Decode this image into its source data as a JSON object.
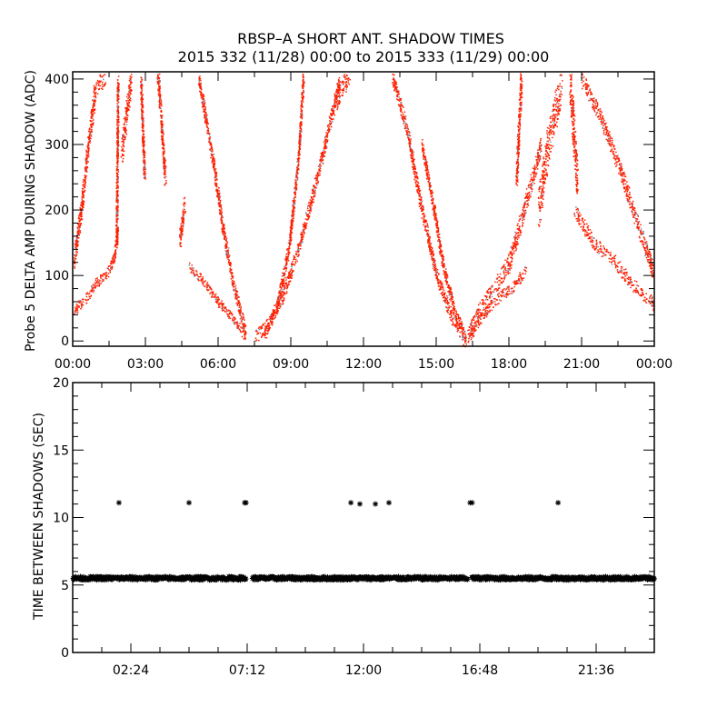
{
  "title": "RBSP–A SHORT ANT. SHADOW TIMES",
  "subtitle": "2015 332 (11/28) 00:00 to 2015 333 (11/29) 00:00",
  "colors": {
    "points": "#ff2000",
    "axis": "#000000",
    "stars": "#000000"
  },
  "chart_data": [
    {
      "type": "scatter",
      "ylabel": "Probe 5 DELTA AMP DURING SHADOW (ADC)",
      "xlabel": "",
      "xlim": [
        0,
        24
      ],
      "ylim": [
        -8,
        411
      ],
      "xticks": [
        {
          "v": 0,
          "label": "00:00"
        },
        {
          "v": 3,
          "label": "03:00"
        },
        {
          "v": 6,
          "label": "06:00"
        },
        {
          "v": 9,
          "label": "09:00"
        },
        {
          "v": 12,
          "label": "12:00"
        },
        {
          "v": 15,
          "label": "15:00"
        },
        {
          "v": 18,
          "label": "18:00"
        },
        {
          "v": 21,
          "label": "21:00"
        },
        {
          "v": 24,
          "label": "00:00"
        }
      ],
      "yticks": [
        {
          "v": 0,
          "label": "0"
        },
        {
          "v": 100,
          "label": "100"
        },
        {
          "v": 200,
          "label": "200"
        },
        {
          "v": 300,
          "label": "300"
        },
        {
          "v": 400,
          "label": "400"
        }
      ],
      "branches": [
        {
          "name": "lower-left rising",
          "points": [
            [
              0,
              45
            ],
            [
              0.5,
              65
            ],
            [
              1.0,
              90
            ],
            [
              1.5,
              108
            ],
            [
              1.7,
              130
            ],
            [
              1.85,
              170
            ]
          ],
          "spread": 8
        },
        {
          "name": "upper-left rising",
          "points": [
            [
              0,
              115
            ],
            [
              0.3,
              190
            ],
            [
              0.6,
              290
            ],
            [
              0.9,
              380
            ],
            [
              1.3,
              405
            ]
          ],
          "spread": 14
        },
        {
          "name": "early scatter 1",
          "points": [
            [
              1.8,
              150
            ],
            [
              1.85,
              400
            ]
          ],
          "spread": 6
        },
        {
          "name": "early scatter 2",
          "points": [
            [
              2.0,
              290
            ],
            [
              2.4,
              400
            ]
          ],
          "spread": 18
        },
        {
          "name": "early scatter 3",
          "points": [
            [
              3.5,
              410
            ],
            [
              3.8,
              250
            ]
          ],
          "spread": 14
        },
        {
          "name": "early scatter 4",
          "points": [
            [
              2.8,
              400
            ],
            [
              2.95,
              250
            ]
          ],
          "spread": 10
        },
        {
          "name": "descending lower",
          "points": [
            [
              4.8,
              115
            ],
            [
              5.4,
              90
            ],
            [
              6.0,
              60
            ],
            [
              6.6,
              35
            ],
            [
              7.1,
              8
            ]
          ],
          "spread": 7
        },
        {
          "name": "descending upper",
          "points": [
            [
              4.4,
              150
            ],
            [
              4.6,
              210
            ]
          ],
          "spread": 12
        },
        {
          "name": "descending outer",
          "points": [
            [
              5.2,
              400
            ],
            [
              5.8,
              270
            ],
            [
              6.2,
              170
            ],
            [
              6.6,
              90
            ],
            [
              7.1,
              15
            ]
          ],
          "spread": 10
        },
        {
          "name": "ascending lower",
          "points": [
            [
              7.5,
              5
            ],
            [
              8.0,
              25
            ],
            [
              8.6,
              65
            ],
            [
              9.2,
              130
            ],
            [
              9.8,
              210
            ],
            [
              10.4,
              300
            ],
            [
              11.0,
              400
            ]
          ],
          "spread": 10
        },
        {
          "name": "ascending inner",
          "points": [
            [
              7.9,
              10
            ],
            [
              8.4,
              50
            ],
            [
              8.9,
              140
            ],
            [
              9.3,
              280
            ],
            [
              9.5,
              400
            ]
          ],
          "spread": 9
        },
        {
          "name": "ascending top",
          "points": [
            [
              10.8,
              360
            ],
            [
              11.4,
              410
            ]
          ],
          "spread": 15
        },
        {
          "name": "descending mid 1",
          "points": [
            [
              13.2,
              400
            ],
            [
              13.8,
              320
            ],
            [
              14.4,
              200
            ],
            [
              15.0,
              100
            ],
            [
              15.6,
              40
            ],
            [
              16.2,
              0
            ]
          ],
          "spread": 10
        },
        {
          "name": "descending mid 2",
          "points": [
            [
              14.4,
              300
            ],
            [
              14.9,
              200
            ],
            [
              15.3,
              110
            ],
            [
              15.8,
              40
            ],
            [
              16.2,
              5
            ]
          ],
          "spread": 9
        },
        {
          "name": "rising right 1",
          "points": [
            [
              16.3,
              5
            ],
            [
              16.9,
              40
            ],
            [
              17.5,
              65
            ],
            [
              18.2,
              85
            ],
            [
              18.7,
              110
            ]
          ],
          "spread": 8
        },
        {
          "name": "rising right 2",
          "points": [
            [
              16.3,
              10
            ],
            [
              16.8,
              50
            ],
            [
              17.4,
              80
            ],
            [
              18.0,
              120
            ],
            [
              18.6,
              200
            ],
            [
              19.3,
              300
            ]
          ],
          "spread": 14
        },
        {
          "name": "late scatter 1",
          "points": [
            [
              18.3,
              250
            ],
            [
              18.5,
              400
            ]
          ],
          "spread": 16
        },
        {
          "name": "late scatter 2",
          "points": [
            [
              19.2,
              200
            ],
            [
              19.6,
              300
            ],
            [
              20.2,
              400
            ]
          ],
          "spread": 30
        },
        {
          "name": "late scatter 3",
          "points": [
            [
              20.5,
              400
            ],
            [
              20.8,
              250
            ]
          ],
          "spread": 30
        },
        {
          "name": "right lower",
          "points": [
            [
              20.7,
              200
            ],
            [
              21.5,
              150
            ],
            [
              22.3,
              125
            ],
            [
              23.0,
              90
            ],
            [
              24,
              55
            ]
          ],
          "spread": 10
        },
        {
          "name": "right upper",
          "points": [
            [
              21.0,
              400
            ],
            [
              21.8,
              340
            ],
            [
              22.6,
              260
            ],
            [
              23.3,
              180
            ],
            [
              24,
              100
            ]
          ],
          "spread": 12
        }
      ]
    },
    {
      "type": "scatter",
      "ylabel": "TIME BETWEEN SHADOWS (SEC)",
      "xlabel": "",
      "xlim": [
        0,
        24
      ],
      "ylim": [
        0,
        20
      ],
      "xticks": [
        {
          "v": 2.4,
          "label": "02:24"
        },
        {
          "v": 7.2,
          "label": "07:12"
        },
        {
          "v": 12,
          "label": "12:00"
        },
        {
          "v": 16.8,
          "label": "16:48"
        },
        {
          "v": 21.6,
          "label": "21:36"
        }
      ],
      "yticks": [
        {
          "v": 0,
          "label": "0"
        },
        {
          "v": 5,
          "label": "5"
        },
        {
          "v": 10,
          "label": "10"
        },
        {
          "v": 15,
          "label": "15"
        },
        {
          "v": 20,
          "label": "20"
        }
      ],
      "baseline": {
        "value": 5.5,
        "from": 0,
        "to": 24,
        "gaps": [
          [
            7.15,
            7.4
          ],
          [
            16.3,
            16.45
          ]
        ]
      },
      "outliers": [
        [
          1.91,
          11.1
        ],
        [
          4.8,
          11.1
        ],
        [
          7.1,
          11.1
        ],
        [
          7.15,
          11.1
        ],
        [
          11.48,
          11.1
        ],
        [
          11.85,
          11.0
        ],
        [
          12.49,
          11.0
        ],
        [
          13.05,
          11.1
        ],
        [
          16.4,
          11.1
        ],
        [
          16.48,
          11.1
        ],
        [
          20.03,
          11.1
        ]
      ]
    }
  ]
}
